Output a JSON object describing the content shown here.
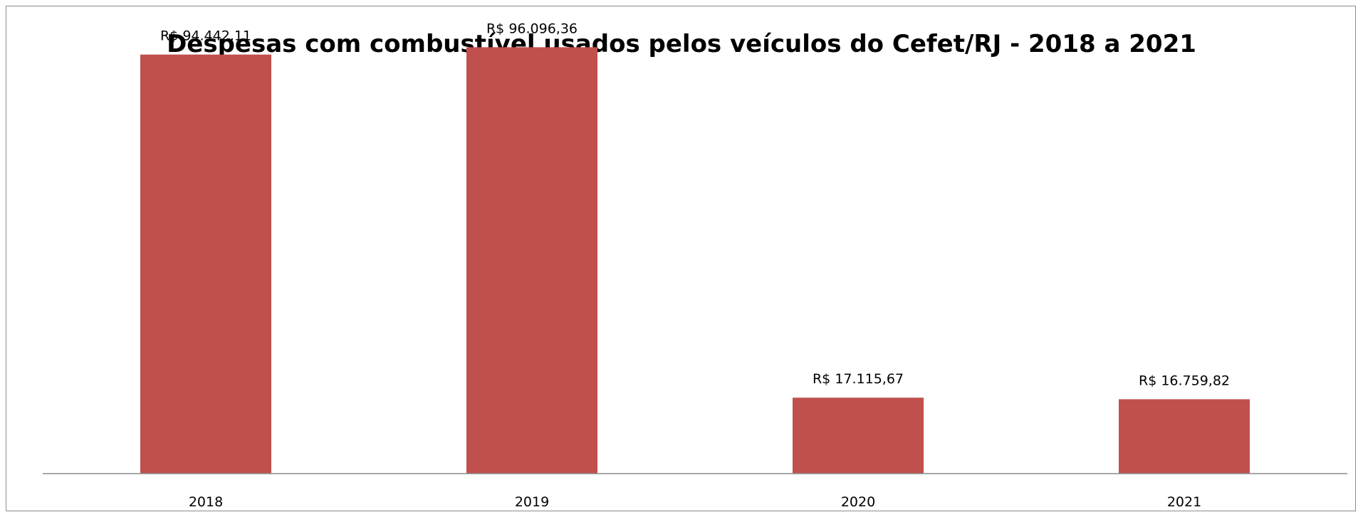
{
  "chart_data": {
    "type": "bar",
    "title": "Despesas com combustível usados pelos veículos do Cefet/RJ - 2018 a 2021",
    "categories": [
      "2018",
      "2019",
      "2020",
      "2021"
    ],
    "values": [
      94442.11,
      96096.36,
      17115.67,
      16759.82
    ],
    "data_labels": [
      "R$ 94.442,11",
      "R$ 96.096,36",
      "R$ 17.115,67",
      "R$ 16.759,82"
    ],
    "xlabel": "",
    "ylabel": "",
    "ylim": [
      0,
      100000
    ],
    "grid": false,
    "legend": "none",
    "bar_color": "#c0504d"
  }
}
